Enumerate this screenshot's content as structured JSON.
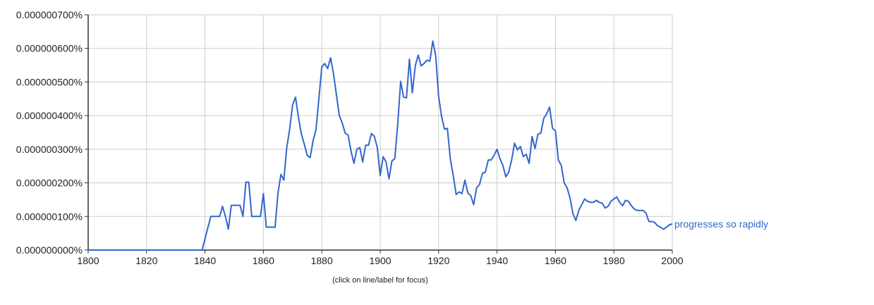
{
  "chart_data": {
    "type": "line",
    "title": "",
    "xlabel": "",
    "ylabel": "",
    "xlim": [
      1800,
      2000
    ],
    "ylim": [
      0,
      7e-07
    ],
    "x_ticks": [
      "1800",
      "1820",
      "1840",
      "1860",
      "1880",
      "1900",
      "1920",
      "1940",
      "1960",
      "1980",
      "2000"
    ],
    "y_ticks": [
      "0.000000000%",
      "0.000000100%",
      "0.000000200%",
      "0.000000300%",
      "0.000000400%",
      "0.000000500%",
      "0.000000600%",
      "0.000000700%"
    ],
    "grid": true,
    "legend": "inline-right",
    "series": [
      {
        "name": "progresses so rapidly",
        "color": "#3366cc",
        "points": [
          [
            1800,
            0.0
          ],
          [
            1839,
            0.0
          ],
          [
            1840,
            3.3e-08
          ],
          [
            1841,
            6.7e-08
          ],
          [
            1842,
            1e-07
          ],
          [
            1843,
            1e-07
          ],
          [
            1844,
            1e-07
          ],
          [
            1845,
            1e-07
          ],
          [
            1846,
            1.3e-07
          ],
          [
            1847,
            1e-07
          ],
          [
            1848,
            6.2e-08
          ],
          [
            1849,
            1.33e-07
          ],
          [
            1850,
            1.33e-07
          ],
          [
            1851,
            1.33e-07
          ],
          [
            1852,
            1.33e-07
          ],
          [
            1853,
            1e-07
          ],
          [
            1854,
            2.02e-07
          ],
          [
            1855,
            2.02e-07
          ],
          [
            1856,
            1e-07
          ],
          [
            1857,
            1e-07
          ],
          [
            1858,
            1e-07
          ],
          [
            1859,
            1e-07
          ],
          [
            1860,
            1.68e-07
          ],
          [
            1861,
            6.8e-08
          ],
          [
            1862,
            6.8e-08
          ],
          [
            1863,
            6.8e-08
          ],
          [
            1864,
            6.8e-08
          ],
          [
            1865,
            1.7e-07
          ],
          [
            1866,
            2.25e-07
          ],
          [
            1867,
            2.08e-07
          ],
          [
            1868,
            3.05e-07
          ],
          [
            1869,
            3.6e-07
          ],
          [
            1870,
            4.32e-07
          ],
          [
            1871,
            4.55e-07
          ],
          [
            1872,
            3.95e-07
          ],
          [
            1873,
            3.45e-07
          ],
          [
            1874,
            3.15e-07
          ],
          [
            1875,
            2.82e-07
          ],
          [
            1876,
            2.75e-07
          ],
          [
            1877,
            3.25e-07
          ],
          [
            1878,
            3.58e-07
          ],
          [
            1879,
            4.5e-07
          ],
          [
            1880,
            5.45e-07
          ],
          [
            1881,
            5.55e-07
          ],
          [
            1882,
            5.4e-07
          ],
          [
            1883,
            5.72e-07
          ],
          [
            1884,
            5.25e-07
          ],
          [
            1885,
            4.62e-07
          ],
          [
            1886,
            4e-07
          ],
          [
            1887,
            3.78e-07
          ],
          [
            1888,
            3.48e-07
          ],
          [
            1889,
            3.42e-07
          ],
          [
            1890,
            2.95e-07
          ],
          [
            1891,
            2.58e-07
          ],
          [
            1892,
            3e-07
          ],
          [
            1893,
            3.05e-07
          ],
          [
            1894,
            2.62e-07
          ],
          [
            1895,
            3.12e-07
          ],
          [
            1896,
            3.12e-07
          ],
          [
            1897,
            3.47e-07
          ],
          [
            1898,
            3.38e-07
          ],
          [
            1899,
            3.05e-07
          ],
          [
            1900,
            2.22e-07
          ],
          [
            1901,
            2.78e-07
          ],
          [
            1902,
            2.62e-07
          ],
          [
            1903,
            2.12e-07
          ],
          [
            1904,
            2.65e-07
          ],
          [
            1905,
            2.72e-07
          ],
          [
            1906,
            3.75e-07
          ],
          [
            1907,
            5.02e-07
          ],
          [
            1908,
            4.55e-07
          ],
          [
            1909,
            4.53e-07
          ],
          [
            1910,
            5.68e-07
          ],
          [
            1911,
            4.68e-07
          ],
          [
            1912,
            5.48e-07
          ],
          [
            1913,
            5.8e-07
          ],
          [
            1914,
            5.48e-07
          ],
          [
            1915,
            5.55e-07
          ],
          [
            1916,
            5.65e-07
          ],
          [
            1917,
            5.62e-07
          ],
          [
            1918,
            6.22e-07
          ],
          [
            1919,
            5.78e-07
          ],
          [
            1920,
            4.58e-07
          ],
          [
            1921,
            3.98e-07
          ],
          [
            1922,
            3.6e-07
          ],
          [
            1923,
            3.62e-07
          ],
          [
            1924,
            2.72e-07
          ],
          [
            1925,
            2.22e-07
          ],
          [
            1926,
            1.65e-07
          ],
          [
            1927,
            1.73e-07
          ],
          [
            1928,
            1.68e-07
          ],
          [
            1929,
            2.08e-07
          ],
          [
            1930,
            1.7e-07
          ],
          [
            1931,
            1.62e-07
          ],
          [
            1932,
            1.35e-07
          ],
          [
            1933,
            1.85e-07
          ],
          [
            1934,
            1.95e-07
          ],
          [
            1935,
            2.28e-07
          ],
          [
            1936,
            2.32e-07
          ],
          [
            1937,
            2.68e-07
          ],
          [
            1938,
            2.68e-07
          ],
          [
            1939,
            2.82e-07
          ],
          [
            1940,
            3e-07
          ],
          [
            1941,
            2.72e-07
          ],
          [
            1942,
            2.52e-07
          ],
          [
            1943,
            2.18e-07
          ],
          [
            1944,
            2.32e-07
          ],
          [
            1945,
            2.68e-07
          ],
          [
            1946,
            3.18e-07
          ],
          [
            1947,
            2.98e-07
          ],
          [
            1948,
            3.08e-07
          ],
          [
            1949,
            2.78e-07
          ],
          [
            1950,
            2.85e-07
          ],
          [
            1951,
            2.58e-07
          ],
          [
            1952,
            3.38e-07
          ],
          [
            1953,
            3.02e-07
          ],
          [
            1954,
            3.45e-07
          ],
          [
            1955,
            3.48e-07
          ],
          [
            1956,
            3.92e-07
          ],
          [
            1957,
            4.05e-07
          ],
          [
            1958,
            4.25e-07
          ],
          [
            1959,
            3.62e-07
          ],
          [
            1960,
            3.55e-07
          ],
          [
            1961,
            2.68e-07
          ],
          [
            1962,
            2.52e-07
          ],
          [
            1963,
            2e-07
          ],
          [
            1964,
            1.85e-07
          ],
          [
            1965,
            1.55e-07
          ],
          [
            1966,
            1.08e-07
          ],
          [
            1967,
            8.8e-08
          ],
          [
            1968,
            1.18e-07
          ],
          [
            1969,
            1.35e-07
          ],
          [
            1970,
            1.52e-07
          ],
          [
            1971,
            1.45e-07
          ],
          [
            1972,
            1.42e-07
          ],
          [
            1973,
            1.42e-07
          ],
          [
            1974,
            1.48e-07
          ],
          [
            1975,
            1.42e-07
          ],
          [
            1976,
            1.4e-07
          ],
          [
            1977,
            1.25e-07
          ],
          [
            1978,
            1.3e-07
          ],
          [
            1979,
            1.45e-07
          ],
          [
            1980,
            1.52e-07
          ],
          [
            1981,
            1.58e-07
          ],
          [
            1982,
            1.42e-07
          ],
          [
            1983,
            1.32e-07
          ],
          [
            1984,
            1.48e-07
          ],
          [
            1985,
            1.45e-07
          ],
          [
            1986,
            1.32e-07
          ],
          [
            1987,
            1.22e-07
          ],
          [
            1988,
            1.18e-07
          ],
          [
            1989,
            1.18e-07
          ],
          [
            1990,
            1.18e-07
          ],
          [
            1991,
            1.1e-07
          ],
          [
            1992,
            8.5e-08
          ],
          [
            1993,
            8.5e-08
          ],
          [
            1994,
            8.2e-08
          ],
          [
            1995,
            7.2e-08
          ],
          [
            1996,
            6.8e-08
          ],
          [
            1997,
            6.2e-08
          ],
          [
            1998,
            6.8e-08
          ],
          [
            1999,
            7.5e-08
          ],
          [
            2000,
            7.8e-08
          ]
        ]
      }
    ],
    "annotation": "(click on line/label for focus)"
  }
}
